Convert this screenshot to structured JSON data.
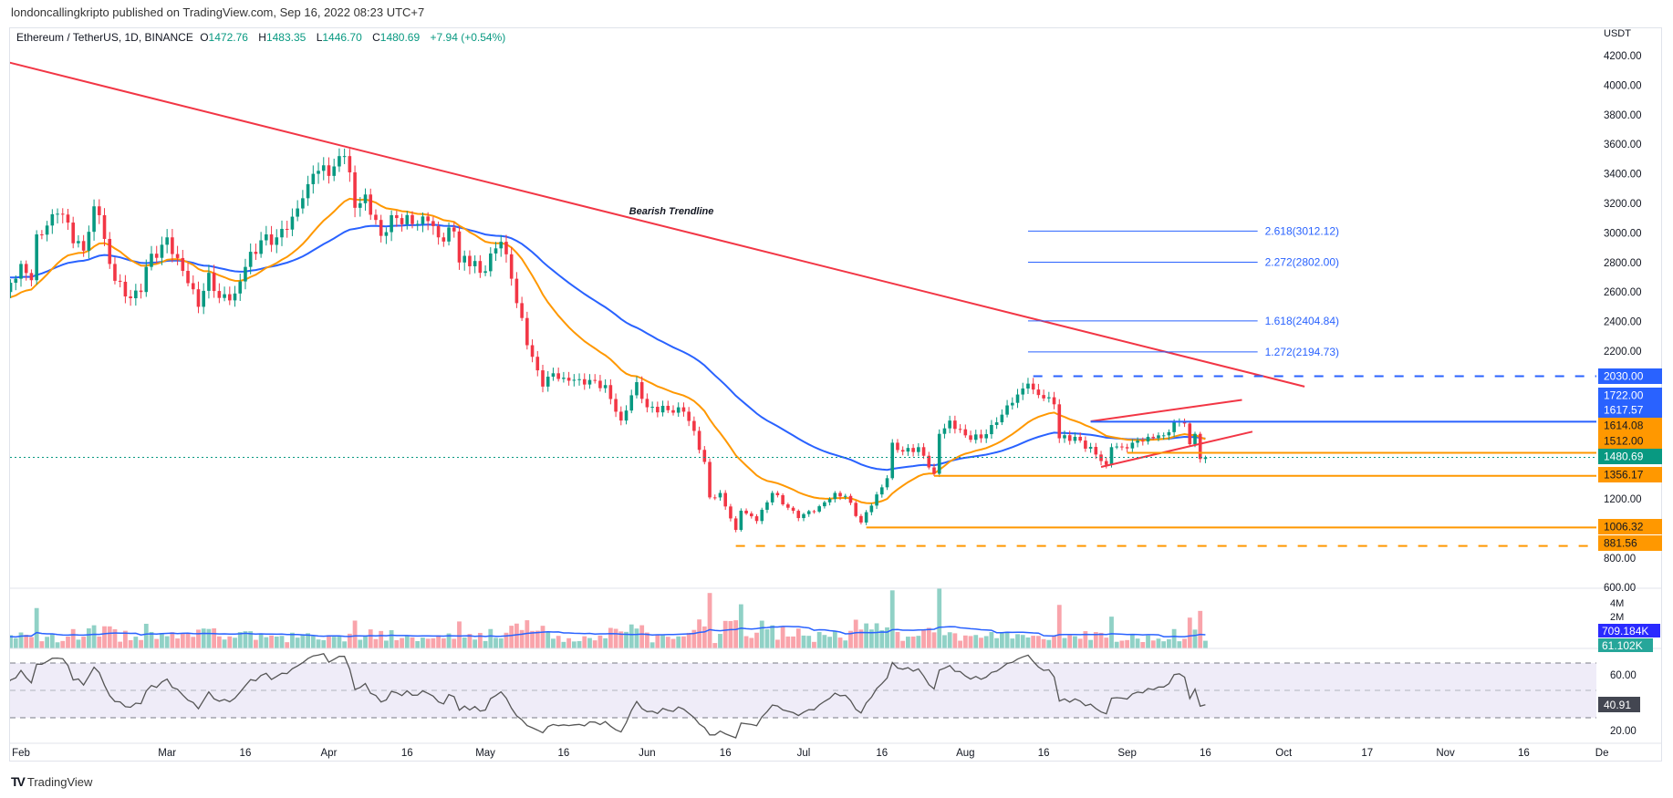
{
  "caption": "londoncallingkripto published on TradingView.com, Sep 16, 2022 08:23 UTC+7",
  "legend": {
    "symbol": "Ethereum / TetherUS, 1D, BINANCE",
    "open_label": "O",
    "open": "1472.76",
    "high_label": "H",
    "high": "1483.35",
    "low_label": "L",
    "low": "1446.70",
    "close_label": "C",
    "close": "1480.69",
    "change": "+7.94 (+0.54%)"
  },
  "branding": "TradingView",
  "colors": {
    "up": "#089981",
    "down": "#f23645",
    "ema_fast": "#ff9800",
    "ema_slow": "#2962ff",
    "trendline": "#f23645",
    "fib": "#2962ff",
    "rsi": "#555555"
  },
  "chart_data": {
    "type": "candlestick",
    "title": "Ethereum / TetherUS, 1D, BINANCE",
    "ylabel": "USDT",
    "ylim": [
      600,
      4200
    ],
    "y_ticks": [
      4200,
      4000,
      3800,
      3600,
      3400,
      3200,
      3000,
      2800,
      2600,
      2400,
      2200,
      1200,
      800,
      600
    ],
    "y_tick_labels": [
      "4200.00",
      "4000.00",
      "3800.00",
      "3600.00",
      "3400.00",
      "3200.00",
      "3000.00",
      "2800.00",
      "2600.00",
      "2400.00",
      "2200.00",
      "1200.00",
      "800.00",
      "600.00"
    ],
    "x_ticks": [
      {
        "date": "2022-02-01",
        "label": "Feb"
      },
      {
        "date": "2022-03-01",
        "label": "Mar"
      },
      {
        "date": "2022-03-16",
        "label": "16"
      },
      {
        "date": "2022-04-01",
        "label": "Apr"
      },
      {
        "date": "2022-04-16",
        "label": "16"
      },
      {
        "date": "2022-05-01",
        "label": "May"
      },
      {
        "date": "2022-05-16",
        "label": "16"
      },
      {
        "date": "2022-06-01",
        "label": "Jun"
      },
      {
        "date": "2022-06-16",
        "label": "16"
      },
      {
        "date": "2022-07-01",
        "label": "Jul"
      },
      {
        "date": "2022-07-16",
        "label": "16"
      },
      {
        "date": "2022-08-01",
        "label": "Aug"
      },
      {
        "date": "2022-08-16",
        "label": "16"
      },
      {
        "date": "2022-09-01",
        "label": "Sep"
      },
      {
        "date": "2022-09-16",
        "label": "16"
      },
      {
        "date": "2022-10-01",
        "label": "Oct"
      },
      {
        "date": "2022-10-17",
        "label": "17"
      },
      {
        "date": "2022-11-01",
        "label": "Nov"
      },
      {
        "date": "2022-11-16",
        "label": "16"
      },
      {
        "date": "2022-12-01",
        "label": "De"
      }
    ],
    "closes": [
      [
        "2022-01-28",
        2550
      ],
      [
        "2022-01-29",
        2600
      ],
      [
        "2022-01-31",
        2690
      ],
      [
        "2022-02-01",
        2790
      ],
      [
        "2022-02-03",
        2680
      ],
      [
        "2022-02-04",
        2990
      ],
      [
        "2022-02-06",
        3050
      ],
      [
        "2022-02-08",
        3130
      ],
      [
        "2022-02-10",
        3070
      ],
      [
        "2022-02-11",
        2930
      ],
      [
        "2022-02-13",
        2880
      ],
      [
        "2022-02-15",
        3180
      ],
      [
        "2022-02-16",
        3120
      ],
      [
        "2022-02-18",
        2790
      ],
      [
        "2022-02-21",
        2570
      ],
      [
        "2022-02-23",
        2610
      ],
      [
        "2022-02-24",
        2600
      ],
      [
        "2022-02-25",
        2770
      ],
      [
        "2022-02-28",
        2920
      ],
      [
        "2022-03-01",
        2970
      ],
      [
        "2022-03-03",
        2830
      ],
      [
        "2022-03-05",
        2660
      ],
      [
        "2022-03-07",
        2500
      ],
      [
        "2022-03-09",
        2730
      ],
      [
        "2022-03-11",
        2560
      ],
      [
        "2022-03-14",
        2590
      ],
      [
        "2022-03-16",
        2770
      ],
      [
        "2022-03-19",
        2950
      ],
      [
        "2022-03-22",
        2970
      ],
      [
        "2022-03-25",
        3110
      ],
      [
        "2022-03-28",
        3330
      ],
      [
        "2022-03-29",
        3400
      ],
      [
        "2022-04-02",
        3450
      ],
      [
        "2022-04-03",
        3520
      ],
      [
        "2022-04-04",
        3520
      ],
      [
        "2022-04-05",
        3410
      ],
      [
        "2022-04-06",
        3170
      ],
      [
        "2022-04-08",
        3260
      ],
      [
        "2022-04-11",
        2980
      ],
      [
        "2022-04-13",
        3120
      ],
      [
        "2022-04-17",
        3060
      ],
      [
        "2022-04-20",
        3080
      ],
      [
        "2022-04-22",
        2970
      ],
      [
        "2022-04-25",
        3010
      ],
      [
        "2022-04-26",
        2800
      ],
      [
        "2022-04-29",
        2810
      ],
      [
        "2022-04-30",
        2730
      ],
      [
        "2022-05-04",
        2940
      ],
      [
        "2022-05-06",
        2690
      ],
      [
        "2022-05-09",
        2240
      ],
      [
        "2022-05-11",
        2070
      ],
      [
        "2022-05-12",
        1960
      ],
      [
        "2022-05-14",
        2050
      ],
      [
        "2022-05-16",
        2020
      ],
      [
        "2022-05-19",
        2010
      ],
      [
        "2022-05-24",
        1970
      ],
      [
        "2022-05-26",
        1790
      ],
      [
        "2022-05-27",
        1730
      ],
      [
        "2022-05-30",
        1990
      ],
      [
        "2022-06-01",
        1820
      ],
      [
        "2022-06-05",
        1800
      ],
      [
        "2022-06-08",
        1790
      ],
      [
        "2022-06-10",
        1660
      ],
      [
        "2022-06-12",
        1450
      ],
      [
        "2022-06-13",
        1210
      ],
      [
        "2022-06-15",
        1240
      ],
      [
        "2022-06-18",
        990
      ],
      [
        "2022-06-19",
        1120
      ],
      [
        "2022-06-22",
        1050
      ],
      [
        "2022-06-25",
        1240
      ],
      [
        "2022-06-28",
        1140
      ],
      [
        "2022-06-30",
        1070
      ],
      [
        "2022-07-04",
        1150
      ],
      [
        "2022-07-07",
        1240
      ],
      [
        "2022-07-09",
        1220
      ],
      [
        "2022-07-12",
        1040
      ],
      [
        "2022-07-13",
        1110
      ],
      [
        "2022-07-15",
        1230
      ],
      [
        "2022-07-17",
        1340
      ],
      [
        "2022-07-18",
        1580
      ],
      [
        "2022-07-20",
        1520
      ],
      [
        "2022-07-23",
        1550
      ],
      [
        "2022-07-26",
        1370
      ],
      [
        "2022-07-27",
        1640
      ],
      [
        "2022-07-29",
        1730
      ],
      [
        "2022-08-01",
        1630
      ],
      [
        "2022-08-04",
        1610
      ],
      [
        "2022-08-06",
        1700
      ],
      [
        "2022-08-08",
        1770
      ],
      [
        "2022-08-10",
        1850
      ],
      [
        "2022-08-13",
        1980
      ],
      [
        "2022-08-14",
        1940
      ],
      [
        "2022-08-16",
        1880
      ],
      [
        "2022-08-18",
        1840
      ],
      [
        "2022-08-19",
        1610
      ],
      [
        "2022-08-22",
        1620
      ],
      [
        "2022-08-26",
        1500
      ],
      [
        "2022-08-28",
        1430
      ],
      [
        "2022-08-29",
        1550
      ],
      [
        "2022-08-31",
        1550
      ],
      [
        "2022-09-02",
        1580
      ],
      [
        "2022-09-05",
        1620
      ],
      [
        "2022-09-07",
        1630
      ],
      [
        "2022-09-08",
        1630
      ],
      [
        "2022-09-10",
        1720
      ],
      [
        "2022-09-12",
        1710
      ],
      [
        "2022-09-13",
        1570
      ],
      [
        "2022-09-14",
        1640
      ],
      [
        "2022-09-15",
        1470
      ],
      [
        "2022-09-16",
        1480.69
      ]
    ],
    "indicators": {
      "ema_fast_last": "1614.08",
      "ema_slow_last": "1617.57",
      "volume_label": "4M",
      "volume_label2": "2M",
      "volume_last": "709.184K",
      "volume_ma_last": "61.102K",
      "rsi_ticks": [
        "60.00",
        "20.00"
      ],
      "rsi_last": "40.91",
      "rsi_upper": 70,
      "rsi_lower": 30,
      "rsi_mid": 50
    },
    "annotations": {
      "trendline_label": "Bearish Trendline",
      "trendline": {
        "start": [
          "2022-01-29",
          4160
        ],
        "end": [
          "2022-10-05",
          1960
        ]
      },
      "wedge_upper": {
        "start": [
          "2022-08-25",
          1725
        ],
        "end": [
          "2022-09-23",
          1870
        ]
      },
      "wedge_lower": {
        "start": [
          "2022-08-27",
          1416
        ],
        "end": [
          "2022-09-25",
          1655
        ]
      },
      "fib_levels": [
        {
          "label": "2.618(3012.12)",
          "price": 3012.12
        },
        {
          "label": "2.272(2802.00)",
          "price": 2802.0
        },
        {
          "label": "1.618(2404.84)",
          "price": 2404.84
        },
        {
          "label": "1.272(2194.73)",
          "price": 2194.73
        }
      ],
      "fib_range": [
        "2022-08-13",
        "2022-09-26"
      ],
      "hlines": [
        {
          "price": 2030.0,
          "from": "2022-08-14",
          "color": "#2962ff",
          "dashed": true
        },
        {
          "price": 1722.0,
          "from": "2022-08-25",
          "color": "#2962ff",
          "dashed": false
        },
        {
          "price": 1512.0,
          "from": "2022-09-01",
          "color": "#ff9800",
          "dashed": false
        },
        {
          "price": 1356.17,
          "from": "2022-07-26",
          "color": "#ff9800",
          "dashed": false
        },
        {
          "price": 1006.32,
          "from": "2022-07-13",
          "color": "#ff9800",
          "dashed": false
        },
        {
          "price": 881.56,
          "from": "2022-06-18",
          "color": "#ff9800",
          "dashed": true
        }
      ],
      "last_price": 1480.69
    },
    "price_labels": [
      {
        "text": "2030.00",
        "bg": "#2962ff",
        "fg": "#ffffff"
      },
      {
        "text": "1722.00",
        "bg": "#2962ff",
        "fg": "#ffffff"
      },
      {
        "text": "1617.57",
        "bg": "#2962ff",
        "fg": "#ffffff"
      },
      {
        "text": "1614.08",
        "bg": "#ff9800",
        "fg": "#131722"
      },
      {
        "text": "1512.00",
        "bg": "#ff9800",
        "fg": "#131722"
      },
      {
        "text": "1480.69",
        "bg": "#089981",
        "fg": "#ffffff"
      },
      {
        "text": "1356.17",
        "bg": "#ff9800",
        "fg": "#131722"
      },
      {
        "text": "1006.32",
        "bg": "#ff9800",
        "fg": "#131722"
      },
      {
        "text": "881.56",
        "bg": "#ff9800",
        "fg": "#131722"
      }
    ]
  }
}
